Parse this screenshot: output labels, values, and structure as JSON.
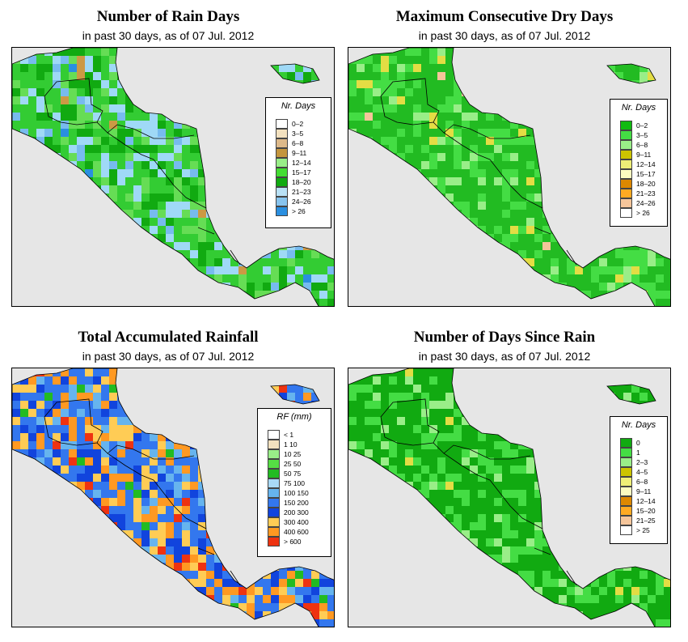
{
  "panels": [
    {
      "id": "rain-days",
      "title": "Number of Rain Days",
      "subtitle": "in past 30 days, as of  07 Jul. 2012",
      "legend": {
        "title": "Nr. Days",
        "items": [
          {
            "label": "0–2",
            "color": "#ffffff"
          },
          {
            "label": "3–5",
            "color": "#f3e1bf"
          },
          {
            "label": "6–8",
            "color": "#ddb98a"
          },
          {
            "label": "9–11",
            "color": "#c5963e"
          },
          {
            "label": "12–14",
            "color": "#99ee88"
          },
          {
            "label": "15–17",
            "color": "#44dd33"
          },
          {
            "label": "18–20",
            "color": "#11aa11"
          },
          {
            "label": "21–23",
            "color": "#b9e1f6"
          },
          {
            "label": "24–26",
            "color": "#88c4ee"
          },
          {
            "label": "> 26",
            "color": "#2a8fe0"
          }
        ]
      }
    },
    {
      "id": "max-dry-days",
      "title": "Maximum Consecutive Dry Days",
      "subtitle": "in past 30 days, as of  07 Jul. 2012",
      "legend": {
        "title": "Nr. Days",
        "items": [
          {
            "label": "0–2",
            "color": "#11bb11"
          },
          {
            "label": "3–5",
            "color": "#44dd44"
          },
          {
            "label": "6–8",
            "color": "#99ee88"
          },
          {
            "label": "9–11",
            "color": "#ccc400"
          },
          {
            "label": "12–14",
            "color": "#eeee77"
          },
          {
            "label": "15–17",
            "color": "#fbfbc0"
          },
          {
            "label": "18–20",
            "color": "#dd8800"
          },
          {
            "label": "21–23",
            "color": "#ffaa22"
          },
          {
            "label": "24–26",
            "color": "#f5c59a"
          },
          {
            "label": "> 26",
            "color": "#ffffff"
          }
        ]
      }
    },
    {
      "id": "total-rainfall",
      "title": "Total Accumulated Rainfall",
      "subtitle": "in past 30 days, as of  07 Jul. 2012",
      "legend": {
        "title": "RF (mm)",
        "items": [
          {
            "label": "< 1",
            "color": "#ffffff"
          },
          {
            "label": "1   10",
            "color": "#f3e1bf"
          },
          {
            "label": "10   25",
            "color": "#99ee88"
          },
          {
            "label": "25   50",
            "color": "#55dd44"
          },
          {
            "label": "50   75",
            "color": "#22bb22"
          },
          {
            "label": "75   100",
            "color": "#a9d9f6"
          },
          {
            "label": "100   150",
            "color": "#66b4ee"
          },
          {
            "label": "150   200",
            "color": "#3377ee"
          },
          {
            "label": "200   300",
            "color": "#1144dd"
          },
          {
            "label": "300   400",
            "color": "#ffcc55"
          },
          {
            "label": "400   600",
            "color": "#ff9922"
          },
          {
            "label": "> 600",
            "color": "#ee3311"
          }
        ]
      }
    },
    {
      "id": "days-since-rain",
      "title": "Number of Days Since Rain",
      "subtitle": "in past 30 days, as of  07 Jul. 2012",
      "legend": {
        "title": "Nr. Days",
        "items": [
          {
            "label": "0",
            "color": "#11aa11"
          },
          {
            "label": "1",
            "color": "#44dd44"
          },
          {
            "label": "2–3",
            "color": "#99ee88"
          },
          {
            "label": "4–5",
            "color": "#ccc400"
          },
          {
            "label": "6–8",
            "color": "#eeee77"
          },
          {
            "label": "9–11",
            "color": "#fbfbc0"
          },
          {
            "label": "12–14",
            "color": "#dd8800"
          },
          {
            "label": "15–20",
            "color": "#ffaa22"
          },
          {
            "label": "21–25",
            "color": "#f5c59a"
          },
          {
            "label": "> 25",
            "color": "#ffffff"
          }
        ]
      }
    }
  ]
}
